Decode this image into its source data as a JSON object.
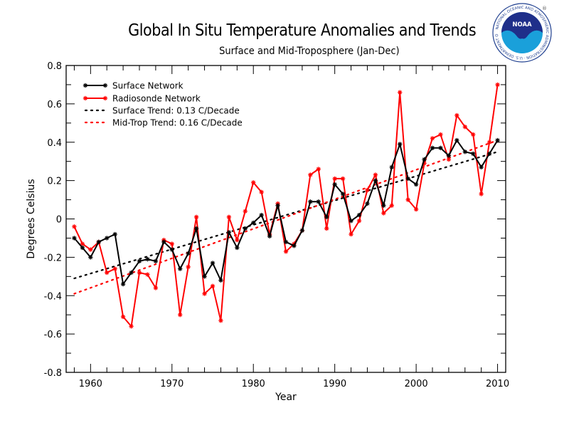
{
  "header": {
    "title": "Global In Situ Temperature Anomalies and Trends",
    "subtitle": "Surface and Mid-Troposphere (Jan-Dec)",
    "logo_text": "NOAA",
    "logo_ring_text": "NATIONAL OCEANIC AND ATMOSPHERIC ADMINISTRATION · U.S. DEPARTMENT OF COMMERCE",
    "registered_mark": "®"
  },
  "chart_data": {
    "type": "line",
    "title": "Global In Situ Temperature Anomalies and Trends",
    "subtitle": "Surface and Mid-Troposphere (Jan-Dec)",
    "xlabel": "Year",
    "ylabel": "Degrees Celsius",
    "xlim": [
      1957,
      2011
    ],
    "ylim": [
      -0.8,
      0.8
    ],
    "xticks": [
      1960,
      1970,
      1980,
      1990,
      2000,
      2010
    ],
    "xtick_labels": [
      "1960",
      "1970",
      "1980",
      "1990",
      "2000",
      "2010"
    ],
    "yticks": [
      0.8,
      0.6,
      0.4,
      0.2,
      0,
      -0.2,
      -0.4,
      -0.6,
      -0.8
    ],
    "ytick_labels": [
      "0.8",
      "0.6",
      "0.4",
      "0.2",
      "0",
      "-0.2",
      "-0.4",
      "-0.6",
      "-0.8"
    ],
    "grid": false,
    "legend_position": "top-left",
    "x": [
      1958,
      1959,
      1960,
      1961,
      1962,
      1963,
      1964,
      1965,
      1966,
      1967,
      1968,
      1969,
      1970,
      1971,
      1972,
      1973,
      1974,
      1975,
      1976,
      1977,
      1978,
      1979,
      1980,
      1981,
      1982,
      1983,
      1984,
      1985,
      1986,
      1987,
      1988,
      1989,
      1990,
      1991,
      1992,
      1993,
      1994,
      1995,
      1996,
      1997,
      1998,
      1999,
      2000,
      2001,
      2002,
      2003,
      2004,
      2005,
      2006,
      2007,
      2008,
      2009,
      2010
    ],
    "series": [
      {
        "name": "Surface Network",
        "color": "#000000",
        "style": "solid-star",
        "values": [
          -0.1,
          -0.15,
          -0.2,
          -0.12,
          -0.1,
          -0.08,
          -0.34,
          -0.28,
          -0.22,
          -0.21,
          -0.22,
          -0.12,
          -0.16,
          -0.26,
          -0.18,
          -0.05,
          -0.3,
          -0.23,
          -0.32,
          -0.07,
          -0.15,
          -0.05,
          -0.02,
          0.02,
          -0.09,
          0.07,
          -0.12,
          -0.14,
          -0.06,
          0.09,
          0.09,
          0.01,
          0.18,
          0.13,
          -0.01,
          0.02,
          0.08,
          0.2,
          0.07,
          0.27,
          0.39,
          0.21,
          0.18,
          0.31,
          0.37,
          0.37,
          0.33,
          0.41,
          0.35,
          0.34,
          0.27,
          0.34,
          0.41
        ]
      },
      {
        "name": "Radiosonde Network",
        "color": "#ff0000",
        "style": "solid-star",
        "values": [
          -0.04,
          -0.13,
          -0.16,
          -0.12,
          -0.28,
          -0.26,
          -0.51,
          -0.56,
          -0.28,
          -0.29,
          -0.36,
          -0.11,
          -0.13,
          -0.5,
          -0.25,
          0.01,
          -0.39,
          -0.35,
          -0.53,
          0.01,
          -0.11,
          0.04,
          0.19,
          0.14,
          -0.08,
          0.08,
          -0.17,
          -0.13,
          -0.06,
          0.23,
          0.26,
          -0.05,
          0.21,
          0.21,
          -0.08,
          -0.01,
          0.15,
          0.23,
          0.03,
          0.07,
          0.66,
          0.1,
          0.05,
          0.29,
          0.42,
          0.44,
          0.31,
          0.54,
          0.48,
          0.44,
          0.13,
          0.4,
          0.7
        ]
      },
      {
        "name": "Surface Trend: 0.13 C/Decade",
        "color": "#000000",
        "style": "dotted",
        "x": [
          1958,
          2010
        ],
        "values": [
          -0.31,
          0.35
        ]
      },
      {
        "name": "Mid-Trop Trend: 0.16 C/Decade",
        "color": "#ff0000",
        "style": "dotted",
        "x": [
          1958,
          2010
        ],
        "values": [
          -0.39,
          0.41
        ]
      }
    ]
  }
}
